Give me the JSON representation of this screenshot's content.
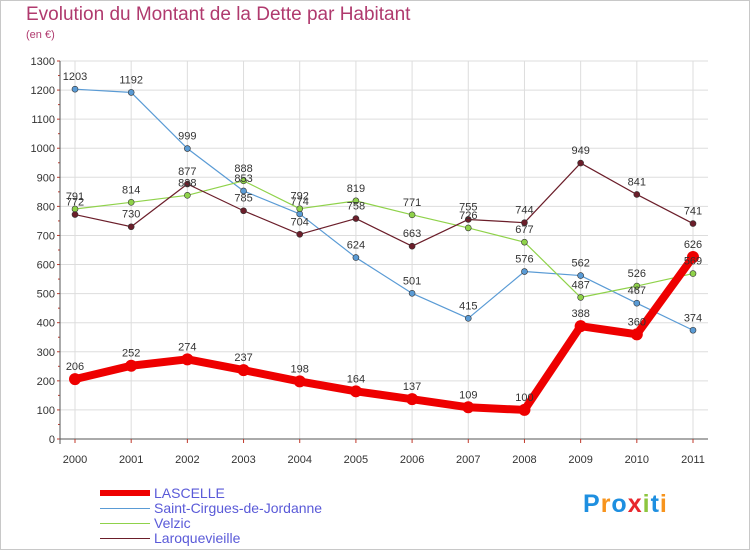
{
  "title": "Evolution du Montant de la Dette par Habitant",
  "unit_label": "(en €)",
  "logo": {
    "text": "Proxiti",
    "letters": [
      "P",
      "r",
      "o",
      "x",
      "i",
      "t",
      "i"
    ],
    "colors": [
      "#1e8fe0",
      "#f7941d",
      "#1e8fe0",
      "#e8282e",
      "#8dc63f",
      "#1e8fe0",
      "#f7941d"
    ]
  },
  "chart_data": {
    "type": "line",
    "x": [
      "2000",
      "2001",
      "2002",
      "2003",
      "2004",
      "2005",
      "2006",
      "2007",
      "2008",
      "2009",
      "2010",
      "2011"
    ],
    "ylim": [
      0,
      1300
    ],
    "yticks": [
      0,
      100,
      200,
      300,
      400,
      500,
      600,
      700,
      800,
      900,
      1000,
      1100,
      1200,
      1300
    ],
    "grid": true,
    "series": [
      {
        "name": "LASCELLE",
        "color": "#ee0000",
        "main": true,
        "values": [
          206,
          252,
          274,
          237,
          198,
          164,
          137,
          109,
          100,
          388,
          360,
          626
        ]
      },
      {
        "name": "Saint-Cirgues-de-Jordanne",
        "color": "#5a9bd5",
        "main": false,
        "values": [
          1203,
          1192,
          999,
          853,
          774,
          624,
          501,
          415,
          576,
          562,
          467,
          374
        ]
      },
      {
        "name": "Velzic",
        "color": "#8fd24a",
        "main": false,
        "values": [
          791,
          814,
          838,
          888,
          792,
          819,
          771,
          726,
          677,
          487,
          526,
          569
        ]
      },
      {
        "name": "Laroquevieille",
        "color": "#6b1e2a",
        "main": false,
        "values": [
          772,
          730,
          877,
          785,
          704,
          758,
          663,
          755,
          744,
          949,
          841,
          741
        ]
      }
    ]
  }
}
